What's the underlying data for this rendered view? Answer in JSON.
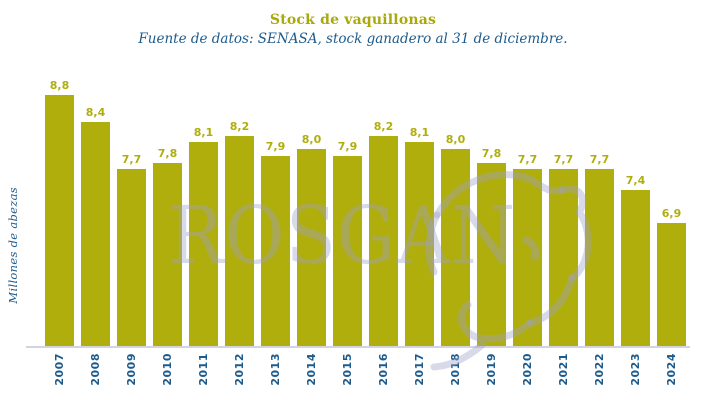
{
  "header": {
    "title": "Stock de vaquillonas",
    "subtitle": "Fuente de datos: SENASA, stock ganadero al 31 de diciembre."
  },
  "watermark": {
    "text": "ROSGAN",
    "icon": "bull-head-icon"
  },
  "colors": {
    "bar": "#b0ae0d",
    "title": "#a9a90b",
    "text_blue": "#1d5b8d",
    "baseline": "#d3d4e2",
    "watermark": "rgba(157,160,200,0.40)"
  },
  "chart_data": {
    "type": "bar",
    "title": "Stock de vaquillonas",
    "subtitle": "Fuente de datos: SENASA, stock ganadero al 31 de diciembre.",
    "xlabel": "",
    "ylabel": "Millones de abezas",
    "categories": [
      "2007",
      "2008",
      "2009",
      "2010",
      "2011",
      "2012",
      "2013",
      "2014",
      "2015",
      "2016",
      "2017",
      "2018",
      "2019",
      "2020",
      "2021",
      "2022",
      "2023",
      "2024"
    ],
    "values": [
      8.8,
      8.4,
      7.7,
      7.8,
      8.1,
      8.2,
      7.9,
      8.0,
      7.9,
      8.2,
      8.1,
      8.0,
      7.8,
      7.7,
      7.7,
      7.7,
      7.4,
      6.9
    ],
    "value_labels": [
      "8,8",
      "8,4",
      "7,7",
      "7,8",
      "8,1",
      "8,2",
      "7,9",
      "8,0",
      "7,9",
      "8,2",
      "8,1",
      "8,0",
      "7,8",
      "7,7",
      "7,7",
      "7,7",
      "7,4",
      "6,9"
    ],
    "ylim": [
      5.07,
      8.95
    ],
    "grid": false,
    "legend": null,
    "bar_labels_position": "above",
    "x_tick_rotation": 90
  }
}
